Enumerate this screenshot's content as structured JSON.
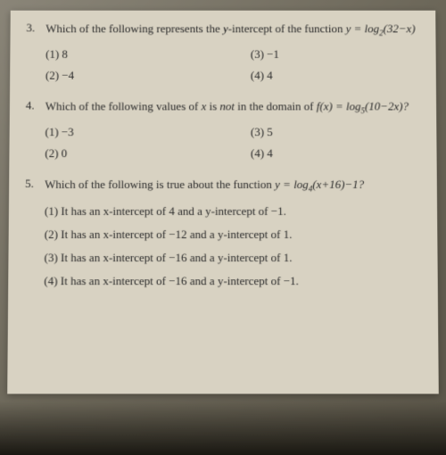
{
  "colors": {
    "page_bg": "#d8d2c2",
    "text": "#2a2a2a",
    "body_bg_start": "#8a8578",
    "body_bg_end": "#5a5548"
  },
  "typography": {
    "font_family": "Times New Roman",
    "question_size": 13,
    "option_size": 13
  },
  "questions": [
    {
      "number": "3.",
      "text_before": "Which of the following represents the ",
      "text_ital": "y",
      "text_mid": "-intercept of the function ",
      "formula": "y = log₂(32−x)",
      "options": [
        {
          "label": "(1)",
          "value": "8"
        },
        {
          "label": "(3)",
          "value": "−1"
        },
        {
          "label": "(2)",
          "value": "−4"
        },
        {
          "label": "(4)",
          "value": "4"
        }
      ]
    },
    {
      "number": "4.",
      "text_before": "Which of the following values of ",
      "text_ital": "x",
      "text_mid": " is ",
      "text_ital2": "not",
      "text_mid2": " in the domain of ",
      "formula": "f(x) = log₅(10−2x)?",
      "options": [
        {
          "label": "(1)",
          "value": "−3"
        },
        {
          "label": "(3)",
          "value": "5"
        },
        {
          "label": "(2)",
          "value": "0"
        },
        {
          "label": "(4)",
          "value": "4"
        }
      ]
    },
    {
      "number": "5.",
      "text_before": "Which of the following is true about the function ",
      "formula": "y = log₄(x+16)−1?",
      "options_full": [
        "(1) It has an x-intercept of 4 and a y-intercept of −1.",
        "(2) It has an x-intercept of −12 and a y-intercept of 1.",
        "(3) It has an x-intercept of −16 and a y-intercept of 1.",
        "(4) It has an x-intercept of −16 and a y-intercept of −1."
      ]
    }
  ]
}
